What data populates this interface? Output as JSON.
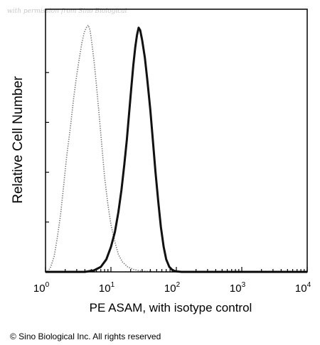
{
  "watermark": "with permission from Sino Biological",
  "copyright": "© Sino Biological Inc. All rights reserved",
  "chart_data": {
    "type": "line",
    "title": "",
    "xlabel": "PE ASAM, with isotype control",
    "ylabel": "Relative Cell Number",
    "x_scale": "log",
    "xlim": [
      1,
      10000
    ],
    "ylim": [
      0,
      100
    ],
    "x_ticks": [
      {
        "base": "10",
        "exp": "0",
        "value": 1
      },
      {
        "base": "10",
        "exp": "1",
        "value": 10
      },
      {
        "base": "10",
        "exp": "2",
        "value": 100
      },
      {
        "base": "10",
        "exp": "3",
        "value": 1000
      },
      {
        "base": "10",
        "exp": "4",
        "value": 10000
      }
    ],
    "y_minor_ticks": [
      20,
      40,
      60,
      80
    ],
    "grid": false,
    "legend": "none",
    "series": [
      {
        "style": "dotted",
        "color": "#777777",
        "points": [
          [
            1.0,
            0
          ],
          [
            1.1,
            0.3
          ],
          [
            1.2,
            2
          ],
          [
            1.35,
            6
          ],
          [
            1.5,
            13
          ],
          [
            1.7,
            23
          ],
          [
            1.9,
            35
          ],
          [
            2.1,
            46
          ],
          [
            2.4,
            58
          ],
          [
            2.7,
            70
          ],
          [
            3.0,
            79
          ],
          [
            3.3,
            86
          ],
          [
            3.6,
            92
          ],
          [
            3.9,
            96
          ],
          [
            4.2,
            98
          ],
          [
            4.5,
            99
          ],
          [
            4.8,
            97
          ],
          [
            5.1,
            92
          ],
          [
            5.5,
            85
          ],
          [
            6.0,
            75
          ],
          [
            6.6,
            63
          ],
          [
            7.3,
            50
          ],
          [
            8.0,
            38
          ],
          [
            9.0,
            27
          ],
          [
            10.0,
            19
          ],
          [
            11.5,
            12
          ],
          [
            13.0,
            7
          ],
          [
            15.0,
            4
          ],
          [
            18.0,
            2
          ],
          [
            22.0,
            1
          ],
          [
            28.0,
            0.4
          ],
          [
            40.0,
            0.2
          ],
          [
            60.0,
            0
          ],
          [
            10000,
            0
          ]
        ]
      },
      {
        "style": "solid",
        "color": "#111111",
        "points": [
          [
            1.0,
            0
          ],
          [
            4.0,
            0
          ],
          [
            5.5,
            0.6
          ],
          [
            7.0,
            2
          ],
          [
            8.5,
            5
          ],
          [
            10.0,
            10
          ],
          [
            11.5,
            16
          ],
          [
            13.0,
            24
          ],
          [
            14.5,
            33
          ],
          [
            16.0,
            43
          ],
          [
            17.5,
            53
          ],
          [
            19.0,
            64
          ],
          [
            20.5,
            74
          ],
          [
            22.0,
            83
          ],
          [
            23.5,
            90
          ],
          [
            25.0,
            95
          ],
          [
            26.5,
            98
          ],
          [
            28.0,
            97
          ],
          [
            30.0,
            93
          ],
          [
            33.0,
            86
          ],
          [
            36.0,
            77
          ],
          [
            40.0,
            65
          ],
          [
            44.0,
            52
          ],
          [
            48.0,
            40
          ],
          [
            53.0,
            28
          ],
          [
            58.0,
            18
          ],
          [
            64.0,
            10
          ],
          [
            70.0,
            5
          ],
          [
            78.0,
            2
          ],
          [
            88.0,
            0.6
          ],
          [
            100.0,
            0.2
          ],
          [
            120.0,
            0
          ],
          [
            10000,
            0
          ]
        ]
      }
    ]
  }
}
